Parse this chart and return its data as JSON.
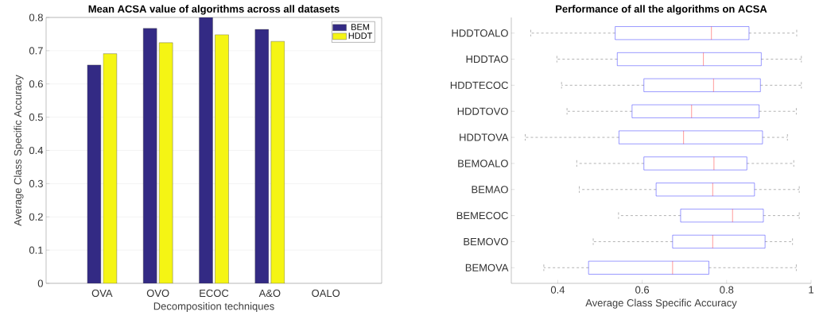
{
  "chart_data": [
    {
      "type": "bar",
      "title": "Mean ACSA value of algorithms across all datasets",
      "xlabel": "Decomposition techniques",
      "ylabel": "Average Class Specific Accuracy",
      "categories": [
        "OVA",
        "OVO",
        "ECOC",
        "A&O",
        "OALO"
      ],
      "series": [
        {
          "name": "BEM",
          "color": "#332a84",
          "values": [
            0.657,
            0.767,
            0.8,
            0.764,
            null
          ]
        },
        {
          "name": "HDDT",
          "color": "#f5f514",
          "values": [
            0.691,
            0.724,
            0.748,
            0.728,
            null
          ]
        }
      ],
      "ylim": [
        0,
        0.8
      ],
      "yticks": [
        0,
        0.1,
        0.2,
        0.3,
        0.4,
        0.5,
        0.6,
        0.7,
        0.8
      ],
      "grid": "y",
      "legend": "top right"
    },
    {
      "type": "box",
      "title": "Performance of all the algorithms on ACSA",
      "xlabel": "Average Class Specific Accuracy",
      "orientation": "horizontal",
      "categories": [
        "HDDTOALO",
        "HDDTAO",
        "HDDTECOC",
        "HDDTOVO",
        "HDDTOVA",
        "BEMOALO",
        "BEMAO",
        "BEMECOC",
        "BEMOVO",
        "BEMOVA"
      ],
      "boxes": [
        {
          "low": 0.336,
          "q1": 0.536,
          "median": 0.764,
          "q3": 0.853,
          "high": 0.966
        },
        {
          "low": 0.398,
          "q1": 0.541,
          "median": 0.745,
          "q3": 0.882,
          "high": 0.977
        },
        {
          "low": 0.409,
          "q1": 0.604,
          "median": 0.769,
          "q3": 0.88,
          "high": 0.977
        },
        {
          "low": 0.422,
          "q1": 0.576,
          "median": 0.717,
          "q3": 0.877,
          "high": 0.965
        },
        {
          "low": 0.323,
          "q1": 0.545,
          "median": 0.698,
          "q3": 0.885,
          "high": 0.944
        },
        {
          "low": 0.445,
          "q1": 0.604,
          "median": 0.77,
          "q3": 0.848,
          "high": 0.959
        },
        {
          "low": 0.451,
          "q1": 0.633,
          "median": 0.767,
          "q3": 0.866,
          "high": 0.972
        },
        {
          "low": 0.544,
          "q1": 0.691,
          "median": 0.814,
          "q3": 0.887,
          "high": 0.972
        },
        {
          "low": 0.484,
          "q1": 0.672,
          "median": 0.767,
          "q3": 0.891,
          "high": 0.956
        },
        {
          "low": 0.367,
          "q1": 0.473,
          "median": 0.672,
          "q3": 0.758,
          "high": 0.965
        }
      ],
      "xlim": [
        0.29,
        1
      ],
      "xticks": [
        0.4,
        0.6,
        0.8,
        1
      ]
    }
  ]
}
